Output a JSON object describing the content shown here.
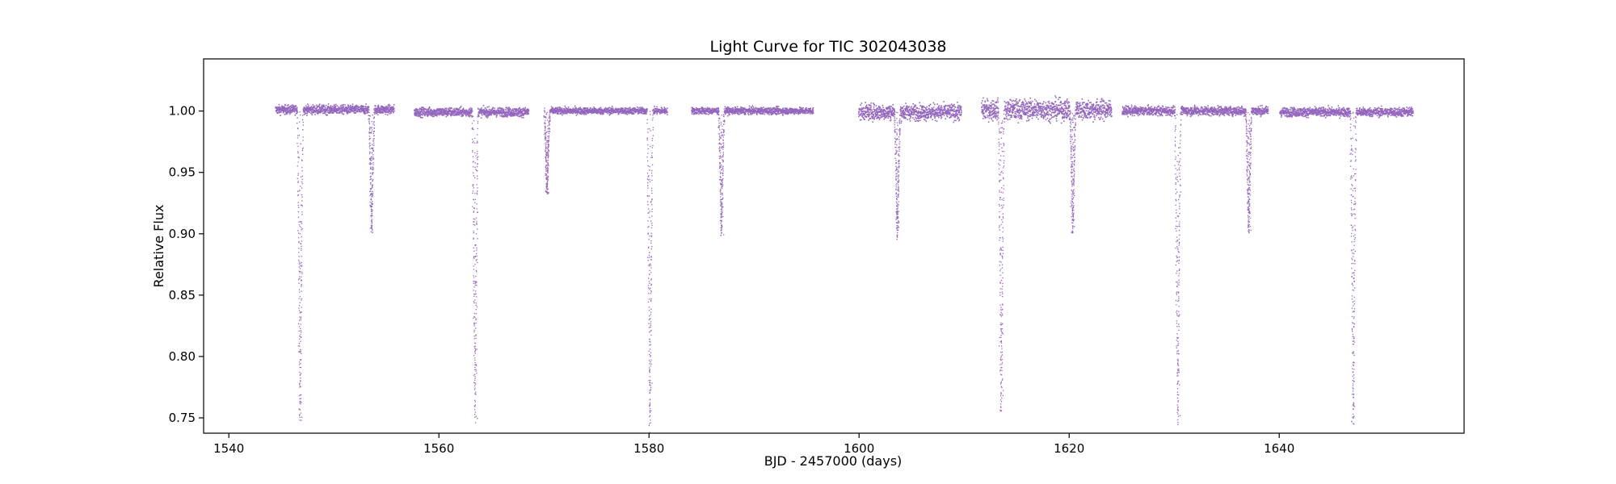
{
  "chart_data": {
    "type": "scatter",
    "title": "Light Curve for TIC 302043038",
    "xlabel": "BJD - 2457000 (days)",
    "ylabel": "Relative Flux",
    "xlim": [
      1537.6,
      1657.6
    ],
    "ylim": [
      0.7375,
      1.0425
    ],
    "xticks": [
      1540,
      1560,
      1580,
      1600,
      1620,
      1640
    ],
    "xtick_labels": [
      "1540",
      "1560",
      "1580",
      "1600",
      "1620",
      "1640"
    ],
    "yticks": [
      0.75,
      0.8,
      0.85,
      0.9,
      0.95,
      1.0
    ],
    "ytick_labels": [
      "0.75",
      "0.80",
      "0.85",
      "0.90",
      "0.95",
      "1.00"
    ],
    "grid": false,
    "marker_color": "#9467bd",
    "baseline_flux": 1.0,
    "observation_segments": [
      {
        "x_start": 1544.4,
        "x_end": 1555.7,
        "flux_center": 1.001,
        "flux_spread": 0.004
      },
      {
        "x_start": 1557.6,
        "x_end": 1568.5,
        "flux_center": 0.999,
        "flux_spread": 0.004
      },
      {
        "x_start": 1570.3,
        "x_end": 1581.7,
        "flux_center": 1.0,
        "flux_spread": 0.003
      },
      {
        "x_start": 1584.0,
        "x_end": 1595.6,
        "flux_center": 1.0,
        "flux_spread": 0.003
      },
      {
        "x_start": 1599.9,
        "x_end": 1609.7,
        "flux_center": 0.999,
        "flux_spread": 0.007
      },
      {
        "x_start": 1611.6,
        "x_end": 1624.0,
        "flux_center": 1.001,
        "flux_spread": 0.009
      },
      {
        "x_start": 1625.0,
        "x_end": 1638.9,
        "flux_center": 1.0,
        "flux_spread": 0.004
      },
      {
        "x_start": 1640.0,
        "x_end": 1652.7,
        "flux_center": 0.999,
        "flux_spread": 0.004
      }
    ],
    "primary_eclipses": [
      {
        "time": 1546.75,
        "min_flux": 0.748
      },
      {
        "time": 1563.4,
        "min_flux": 0.746
      },
      {
        "time": 1580.05,
        "min_flux": 0.74
      },
      {
        "time": 1613.5,
        "min_flux": 0.753
      },
      {
        "time": 1630.3,
        "min_flux": 0.746
      },
      {
        "time": 1647.0,
        "min_flux": 0.745
      }
    ],
    "secondary_eclipses": [
      {
        "time": 1553.55,
        "min_flux": 0.901
      },
      {
        "time": 1570.25,
        "min_flux": 0.933
      },
      {
        "time": 1586.85,
        "min_flux": 0.898
      },
      {
        "time": 1603.6,
        "min_flux": 0.897
      },
      {
        "time": 1620.3,
        "min_flux": 0.9
      },
      {
        "time": 1637.05,
        "min_flux": 0.901
      }
    ]
  }
}
